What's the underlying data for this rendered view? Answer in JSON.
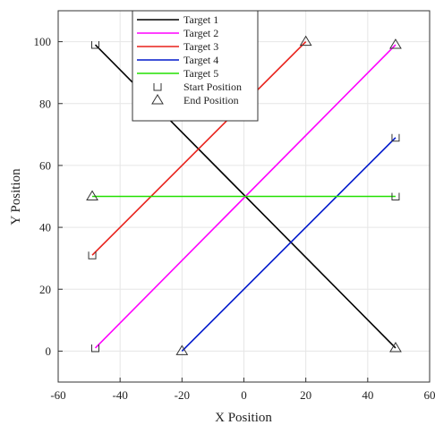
{
  "chart_data": {
    "type": "line",
    "xlabel": "X  Position",
    "ylabel": "Y  Position",
    "xlim": [
      -60,
      60
    ],
    "ylim": [
      -10,
      110
    ],
    "x_ticks": [
      -60,
      -40,
      -20,
      0,
      20,
      40,
      60
    ],
    "y_ticks": [
      0,
      20,
      40,
      60,
      80,
      100
    ],
    "x_tick_labels": [
      "-60",
      "-40",
      "-20",
      "0",
      "20",
      "40",
      "60"
    ],
    "y_tick_labels": [
      "0",
      "20",
      "40",
      "60",
      "80",
      "100"
    ],
    "grid": true,
    "legend_position": "top-left",
    "series": [
      {
        "name": "Target 1",
        "color": "#000000",
        "start": [
          -48,
          99
        ],
        "end": [
          49,
          1
        ]
      },
      {
        "name": "Target 2",
        "color": "#ff00ff",
        "start": [
          -48,
          1
        ],
        "end": [
          49,
          99
        ]
      },
      {
        "name": "Target 3",
        "color": "#e8201a",
        "start": [
          -49,
          31
        ],
        "end": [
          20,
          100
        ]
      },
      {
        "name": "Target 4",
        "color": "#0018cc",
        "start": [
          49,
          69
        ],
        "end": [
          -20,
          0
        ]
      },
      {
        "name": "Target 5",
        "color": "#22e000",
        "start": [
          49,
          50
        ],
        "end": [
          -49,
          50
        ]
      }
    ],
    "markers": {
      "start_label": "Start Position",
      "end_label": "End Position",
      "start_symbol": "square",
      "end_symbol": "triangle"
    }
  }
}
